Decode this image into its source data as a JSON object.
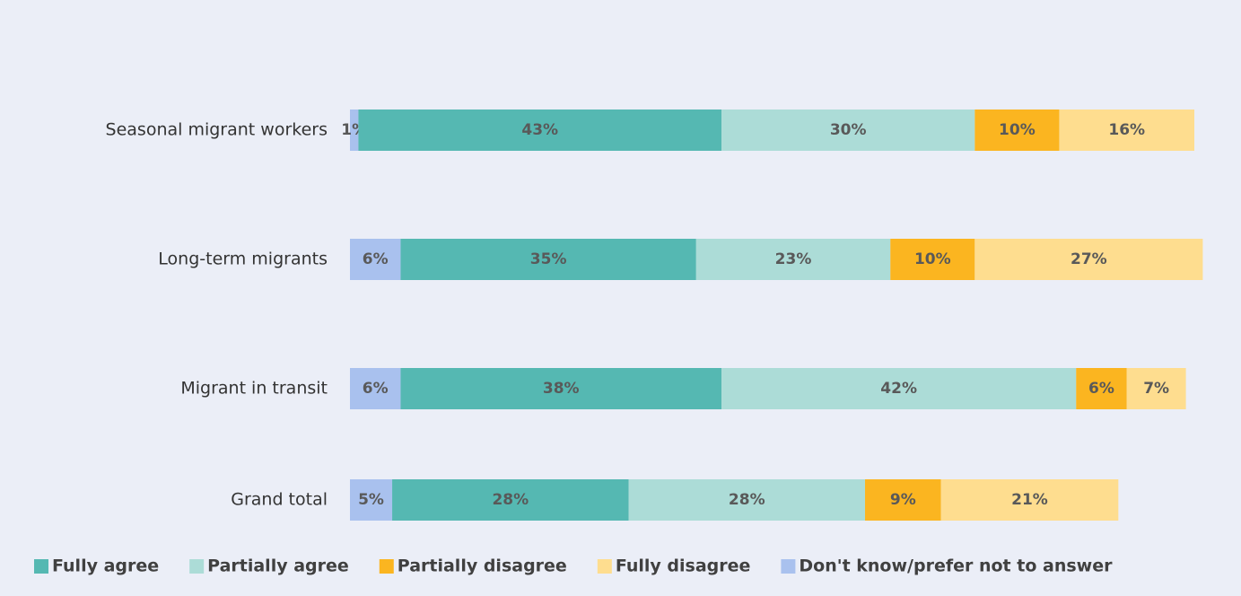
{
  "chart_data": {
    "type": "stacked_bar_horizontal",
    "categories": [
      "Seasonal migrant workers",
      "Long-term migrants",
      "Migrant in transit",
      "Grand total"
    ],
    "xlim": [
      0,
      100
    ],
    "legend": "bottom",
    "series": [
      {
        "name": "Don't know/prefer not to answer",
        "color": "#a9c1ee",
        "values": [
          1,
          6,
          6,
          5
        ],
        "value_labels": [
          "1%",
          "6%",
          "6%",
          "5%"
        ]
      },
      {
        "name": "Fully agree",
        "color": "#55b8b2",
        "values": [
          43,
          35,
          38,
          28
        ],
        "value_labels": [
          "43%",
          "35%",
          "38%",
          "28%"
        ]
      },
      {
        "name": "Partially agree",
        "color": "#acdcd7",
        "values": [
          30,
          23,
          42,
          28
        ],
        "value_labels": [
          "30%",
          "23%",
          "42%",
          "28%"
        ]
      },
      {
        "name": "Partially disagree",
        "color": "#fbb520",
        "values": [
          10,
          10,
          6,
          9
        ],
        "value_labels": [
          "10%",
          "10%",
          "6%",
          "9%"
        ]
      },
      {
        "name": "Fully disagree",
        "color": "#fedd8f",
        "values": [
          16,
          27,
          7,
          21
        ],
        "value_labels": [
          "16%",
          "27%",
          "7%",
          "21%"
        ]
      }
    ]
  }
}
